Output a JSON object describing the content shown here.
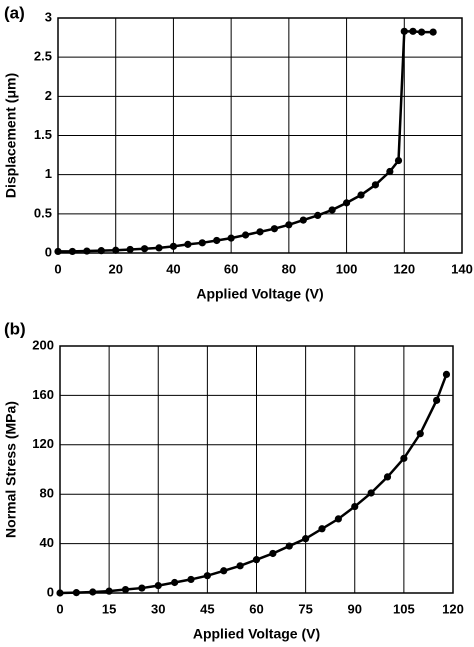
{
  "chart_data": [
    {
      "type": "line",
      "panel_label": "(a)",
      "x_label": "Applied Voltage (V)",
      "y_label": "Displacement (μm)",
      "x": [
        0,
        5,
        10,
        15,
        20,
        25,
        30,
        35,
        40,
        45,
        50,
        55,
        60,
        65,
        70,
        75,
        80,
        85,
        90,
        95,
        100,
        105,
        110,
        115,
        118,
        120,
        123,
        126,
        130
      ],
      "series": [
        {
          "name": "Displacement",
          "color": "#000000",
          "values": [
            0.02,
            0.02,
            0.025,
            0.03,
            0.035,
            0.045,
            0.055,
            0.065,
            0.085,
            0.11,
            0.13,
            0.16,
            0.19,
            0.23,
            0.27,
            0.31,
            0.36,
            0.42,
            0.48,
            0.55,
            0.64,
            0.74,
            0.87,
            1.04,
            1.18,
            2.83,
            2.83,
            2.82,
            2.82
          ]
        }
      ],
      "xlim": [
        0,
        140
      ],
      "xticks": [
        0,
        20,
        40,
        60,
        80,
        100,
        120,
        140
      ],
      "ylim": [
        0,
        3
      ],
      "yticks": [
        0,
        0.5,
        1,
        1.5,
        2,
        2.5,
        3
      ],
      "grid": true
    },
    {
      "type": "line",
      "panel_label": "(b)",
      "x_label": "Applied Voltage (V)",
      "y_label": "Normal Stress (MPa)",
      "x": [
        0,
        5,
        10,
        15,
        20,
        25,
        30,
        35,
        40,
        45,
        50,
        55,
        60,
        65,
        70,
        75,
        80,
        85,
        90,
        95,
        100,
        105,
        110,
        115,
        118
      ],
      "series": [
        {
          "name": "Normal Stress",
          "color": "#000000",
          "values": [
            0,
            0.3,
            0.8,
            1.5,
            2.8,
            4,
            6,
            8.5,
            11,
            14,
            18,
            22,
            27,
            32,
            38,
            44,
            52,
            60,
            70,
            81,
            94,
            109,
            129,
            156,
            177
          ]
        }
      ],
      "xlim": [
        0,
        120
      ],
      "xticks": [
        0,
        15,
        30,
        45,
        60,
        75,
        90,
        105,
        120
      ],
      "ylim": [
        0,
        200
      ],
      "yticks": [
        0,
        40,
        80,
        120,
        160,
        200
      ],
      "grid": true
    }
  ]
}
